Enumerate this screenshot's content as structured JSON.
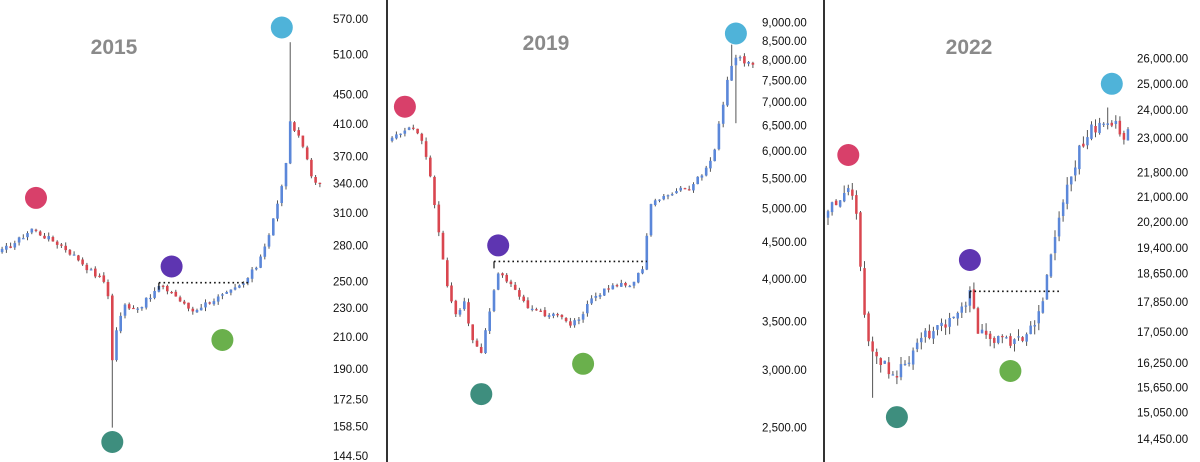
{
  "colors": {
    "up": "#5b87d9",
    "down": "#d9464f",
    "wick": "#555555",
    "divider": "#333333",
    "peak_marker": "#4fb3d9",
    "breakdown_marker": "#d8406a",
    "bottom_marker": "#3e8e7e",
    "breakout_marker": "#5e35b1",
    "retest_marker": "#6ab04c"
  },
  "chart_data": [
    {
      "type": "candlestick",
      "title": "2015",
      "scale": "log",
      "ylim": [
        144.5,
        590
      ],
      "y_ticks": [
        "570.00",
        "510.00",
        "450.00",
        "410.00",
        "370.00",
        "340.00",
        "310.00",
        "280.00",
        "250.00",
        "230.00",
        "210.00",
        "190.00",
        "172.50",
        "158.50",
        "144.50"
      ],
      "anchors": [
        [
          0,
          275
        ],
        [
          4,
          285
        ],
        [
          7,
          295
        ],
        [
          10,
          288
        ],
        [
          14,
          280
        ],
        [
          18,
          268
        ],
        [
          21,
          258
        ],
        [
          24,
          250
        ],
        [
          25,
          240
        ],
        [
          26,
          195
        ],
        [
          27,
          215
        ],
        [
          29,
          232
        ],
        [
          32,
          230
        ],
        [
          35,
          238
        ],
        [
          37,
          246
        ],
        [
          40,
          242
        ],
        [
          43,
          232
        ],
        [
          45,
          228
        ],
        [
          49,
          235
        ],
        [
          53,
          240
        ],
        [
          57,
          248
        ],
        [
          60,
          262
        ],
        [
          63,
          290
        ],
        [
          65,
          318
        ],
        [
          67,
          360
        ],
        [
          68,
          410
        ],
        [
          70,
          395
        ],
        [
          72,
          370
        ],
        [
          73,
          345
        ],
        [
          75,
          338
        ]
      ],
      "extreme_wicks": [
        {
          "i": 26,
          "low": 158
        },
        {
          "i": 68,
          "high": 530
        }
      ],
      "resistance": {
        "value": 249,
        "from": 37,
        "to": 58
      },
      "markers": [
        {
          "name": "breakdown",
          "i": 8,
          "value": 325
        },
        {
          "name": "bottom",
          "i": 26,
          "value": 151
        },
        {
          "name": "breakout",
          "i": 40,
          "value": 262
        },
        {
          "name": "retest",
          "i": 52,
          "value": 208
        },
        {
          "name": "peak",
          "i": 66,
          "value": 555
        }
      ]
    },
    {
      "type": "candlestick",
      "title": "2019",
      "scale": "log",
      "ylim": [
        2300,
        9400
      ],
      "y_ticks": [
        "9,000.00",
        "8,500.00",
        "8,000.00",
        "7,500.00",
        "7,000.00",
        "6,500.00",
        "6,000.00",
        "5,500.00",
        "5,000.00",
        "4,500.00",
        "4,000.00",
        "3,500.00",
        "3,000.00",
        "2,500.00"
      ],
      "anchors": [
        [
          0,
          6300
        ],
        [
          5,
          6450
        ],
        [
          7,
          6200
        ],
        [
          9,
          5500
        ],
        [
          11,
          4600
        ],
        [
          13,
          3900
        ],
        [
          15,
          3600
        ],
        [
          17,
          3700
        ],
        [
          19,
          3300
        ],
        [
          21,
          3150
        ],
        [
          23,
          3600
        ],
        [
          25,
          4100
        ],
        [
          28,
          3950
        ],
        [
          31,
          3700
        ],
        [
          35,
          3600
        ],
        [
          39,
          3550
        ],
        [
          42,
          3450
        ],
        [
          45,
          3600
        ],
        [
          48,
          3800
        ],
        [
          52,
          3900
        ],
        [
          56,
          3950
        ],
        [
          59,
          4100
        ],
        [
          61,
          5100
        ],
        [
          64,
          5200
        ],
        [
          67,
          5300
        ],
        [
          70,
          5350
        ],
        [
          73,
          5600
        ],
        [
          76,
          6000
        ],
        [
          79,
          7500
        ],
        [
          81,
          8100
        ],
        [
          83,
          7900
        ],
        [
          85,
          7900
        ]
      ],
      "extreme_wicks": [
        {
          "i": 80,
          "high": 8400
        },
        {
          "i": 81,
          "low": 6550
        }
      ],
      "resistance": {
        "value": 4230,
        "from": 24,
        "to": 60
      },
      "markers": [
        {
          "name": "breakdown",
          "i": 3,
          "value": 6900
        },
        {
          "name": "bottom",
          "i": 21,
          "value": 2780
        },
        {
          "name": "breakout",
          "i": 25,
          "value": 4450
        },
        {
          "name": "retest",
          "i": 45,
          "value": 3060
        },
        {
          "name": "peak",
          "i": 81,
          "value": 8700
        }
      ]
    },
    {
      "type": "candlestick",
      "title": "2022",
      "scale": "log",
      "ylim": [
        14100,
        27500
      ],
      "y_ticks": [
        "26,000.00",
        "25,000.00",
        "24,000.00",
        "23,000.00",
        "21,800.00",
        "21,000.00",
        "20,200.00",
        "19,400.00",
        "18,650.00",
        "17,850.00",
        "17,050.00",
        "16,250.00",
        "15,650.00",
        "15,050.00",
        "14,450.00"
      ],
      "anchors": [
        [
          0,
          20600
        ],
        [
          3,
          20800
        ],
        [
          5,
          21200
        ],
        [
          7,
          20500
        ],
        [
          9,
          17500
        ],
        [
          11,
          16400
        ],
        [
          13,
          16300
        ],
        [
          15,
          16100
        ],
        [
          17,
          16000
        ],
        [
          19,
          16200
        ],
        [
          21,
          16500
        ],
        [
          23,
          16900
        ],
        [
          26,
          17100
        ],
        [
          29,
          17200
        ],
        [
          32,
          17450
        ],
        [
          34,
          17900
        ],
        [
          35,
          18300
        ],
        [
          37,
          17100
        ],
        [
          40,
          16850
        ],
        [
          43,
          16900
        ],
        [
          46,
          16800
        ],
        [
          48,
          16950
        ],
        [
          50,
          17150
        ],
        [
          52,
          17500
        ],
        [
          54,
          18500
        ],
        [
          56,
          19800
        ],
        [
          58,
          20900
        ],
        [
          60,
          21700
        ],
        [
          62,
          22600
        ],
        [
          65,
          23300
        ],
        [
          68,
          23500
        ],
        [
          71,
          23400
        ],
        [
          73,
          23100
        ],
        [
          74,
          23200
        ]
      ],
      "extreme_wicks": [
        {
          "i": 11,
          "low": 15400
        },
        {
          "i": 69,
          "high": 24100
        }
      ],
      "resistance": {
        "value": 18150,
        "from": 35,
        "to": 57
      },
      "markers": [
        {
          "name": "breakdown",
          "i": 5,
          "value": 22400
        },
        {
          "name": "bottom",
          "i": 17,
          "value": 14950
        },
        {
          "name": "breakout",
          "i": 35,
          "value": 19050
        },
        {
          "name": "retest",
          "i": 45,
          "value": 16050
        },
        {
          "name": "peak",
          "i": 70,
          "value": 25000
        }
      ]
    }
  ]
}
